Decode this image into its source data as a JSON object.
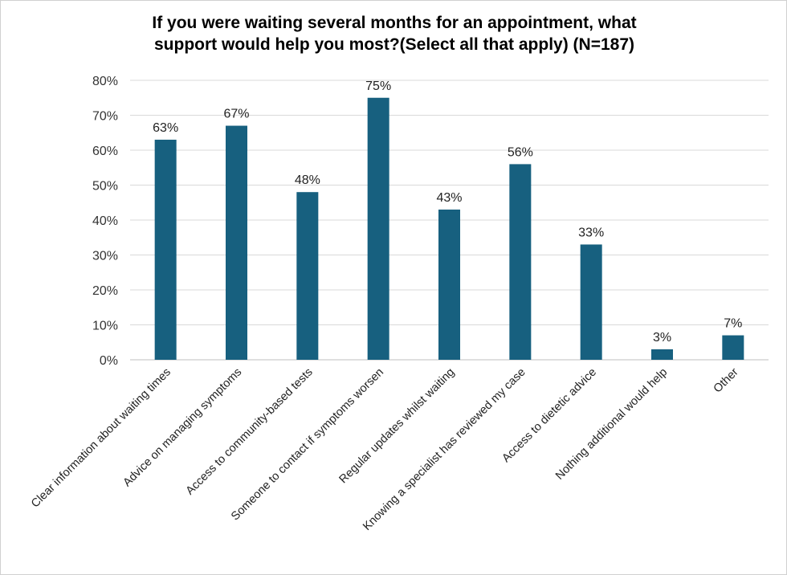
{
  "chart_data": {
    "type": "bar",
    "title_line1": "If you were waiting several months for an appointment, what",
    "title_line2": "support would help you most?(Select all that apply) (N=187)",
    "categories": [
      "Clear information about waiting times",
      "Advice on managing symptoms",
      "Access to community-based tests",
      "Someone to contact if symptoms worsen",
      "Regular updates whilst waiting",
      "Knowing a specialist has reviewed my case",
      "Access to dietetic advice",
      "Nothing additional would help",
      "Other"
    ],
    "values": [
      63,
      67,
      48,
      75,
      43,
      56,
      33,
      3,
      7
    ],
    "data_labels": [
      "63%",
      "67%",
      "48%",
      "75%",
      "43%",
      "56%",
      "33%",
      "3%",
      "7%"
    ],
    "y_ticks": [
      "0%",
      "10%",
      "20%",
      "30%",
      "40%",
      "50%",
      "60%",
      "70%",
      "80%"
    ],
    "ylim": [
      0,
      80
    ],
    "grid": true,
    "bar_color": "#17607f"
  }
}
